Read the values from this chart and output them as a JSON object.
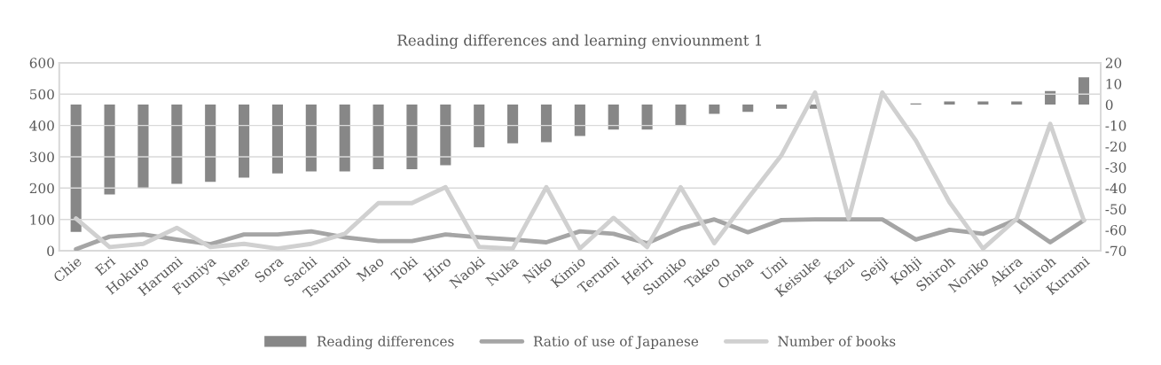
{
  "chart_data": {
    "type": "bar",
    "title": "Reading differences and learning enviounment 1",
    "categories": [
      "Chie",
      "Eri",
      "Hokuto",
      "Harumi",
      "Fumiya",
      "Nene",
      "Sora",
      "Sachi",
      "Tsurumi",
      "Mao",
      "Toki",
      "Hiro",
      "Naoki",
      "Nuka",
      "Niko",
      "Kimio",
      "Terumi",
      "Heiri",
      "Sumiko",
      "Takeo",
      "Otoha",
      "Umi",
      "Keisuke",
      "Kazu",
      "Seiji",
      "Kohji",
      "Shiroh",
      "Noriko",
      "Akira",
      "Ichiroh",
      "Kurumi"
    ],
    "series": [
      {
        "name": "Reading differences",
        "axis": "y2",
        "color": "#878787",
        "values": [
          -61,
          -43,
          -40,
          -38,
          -37,
          -35,
          -33,
          -32,
          -32,
          -31,
          -31,
          -29,
          -20.5,
          -18.5,
          -18,
          -15,
          -12,
          -12,
          -10,
          -4.5,
          -3.5,
          -2,
          -2,
          null,
          null,
          0.5,
          1.5,
          1.5,
          1.5,
          6.5,
          13
        ]
      },
      {
        "name": "Ratio of use of Japanese",
        "type": "line",
        "color": "#a5a5a5",
        "values": [
          5,
          45,
          52,
          36,
          21,
          52,
          52,
          62,
          43,
          31,
          31,
          52,
          43,
          36,
          27,
          62,
          54,
          24,
          71,
          100,
          59,
          98,
          100,
          100,
          100,
          36,
          67,
          54,
          100,
          27,
          97
        ]
      },
      {
        "name": "Number of books",
        "type": "line",
        "color": "#d0d0d0",
        "values": [
          103,
          12,
          22,
          73,
          12,
          22,
          7,
          22,
          54,
          152,
          152,
          203,
          12,
          7,
          203,
          7,
          105,
          12,
          203,
          24,
          167,
          305,
          505,
          102,
          505,
          352,
          155,
          7,
          102,
          405,
          97
        ]
      }
    ],
    "ylim": [
      0,
      600
    ],
    "yticks": [
      0,
      100,
      200,
      300,
      400,
      500,
      600
    ],
    "y2lim": [
      -70,
      20
    ],
    "y2ticks": [
      -70,
      -60,
      -50,
      -40,
      -30,
      -20,
      -10,
      0,
      10,
      20
    ],
    "grid": "y",
    "legend": "bottom",
    "marker": "none",
    "line_style": "solid"
  }
}
